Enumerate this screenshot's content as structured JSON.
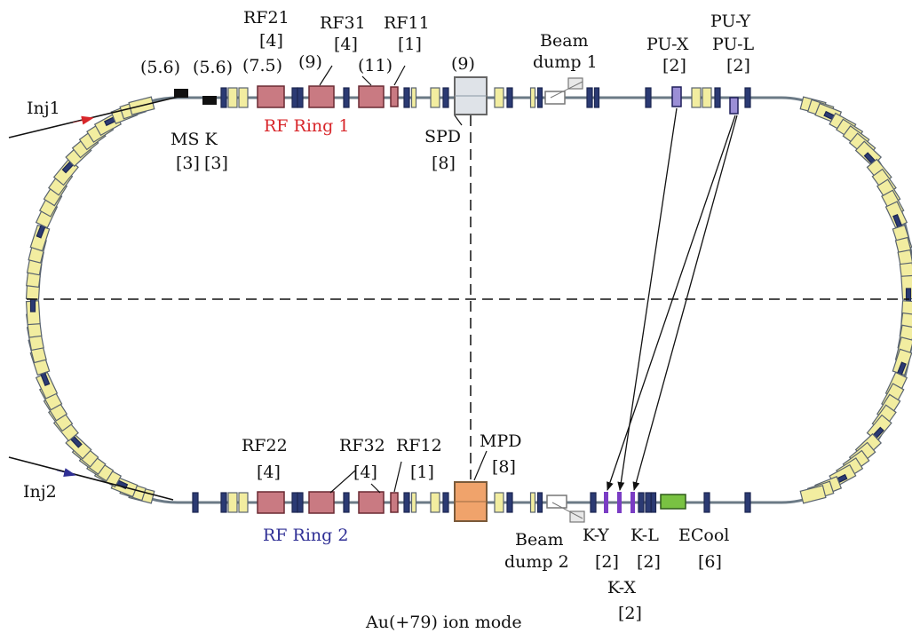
{
  "labels": {
    "inj1": "Inj1",
    "inj2": "Inj2",
    "rf21": "RF21",
    "rf21_count": "[4]",
    "rf21_val": "(7.5)",
    "rf31": "RF31",
    "rf31_count": "[4]",
    "rf31_val": "(9)",
    "rf11": "RF11",
    "rf11_count": "[1]",
    "rf11_val": "(11)",
    "spd_val": "(9)",
    "ms_val": "(5.6)",
    "k_val": "(5.6)",
    "ms_k": "MS K",
    "ms_count": "[3]",
    "k_count": "[3]",
    "rf_ring1": "RF Ring 1",
    "spd": "SPD",
    "spd_count": "[8]",
    "dump1_a": "Beam",
    "dump1_b": "dump 1",
    "pux": "PU-X",
    "pux_count": "[2]",
    "puy": "PU-Y",
    "pul": "PU-L",
    "puyl_count": "[2]",
    "rf22": "RF22",
    "rf22_count": "[4]",
    "rf32": "RF32",
    "rf32_count": "[4]",
    "rf12": "RF12",
    "rf12_count": "[1]",
    "mpd": "MPD",
    "mpd_count": "[8]",
    "rf_ring2": "RF Ring 2",
    "dump2_a": "Beam",
    "dump2_b": "dump 2",
    "ky": "K-Y",
    "ky_count": "[2]",
    "kl": "K-L",
    "kl_count": "[2]",
    "ecool": "ECool",
    "ecool_count": "[6]",
    "kx": "K-X",
    "kx_count": "[2]",
    "caption": "Au(+79) ion mode"
  },
  "colors": {
    "magnet_yellow": "#f2eda0",
    "magnet_blue": "#2b3a73",
    "rf_red": "#c97a82",
    "spd_gray": "#dfe3e8",
    "mpd_orange": "#f0a36b",
    "ecool_green": "#79c242",
    "kicker_purple": "#7a3cc4",
    "pickup_lavender": "#9b8fd6",
    "inj1_arrow": "#d8262a",
    "inj2_arrow": "#2f2f95"
  }
}
